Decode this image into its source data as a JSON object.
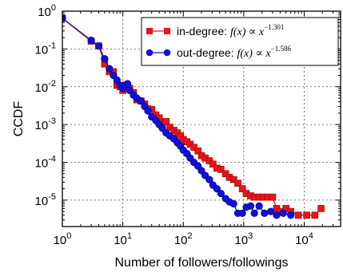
{
  "chart_data": {
    "type": "line",
    "title": "",
    "xlabel": "Number of followers/followings",
    "ylabel": "CCDF",
    "x_scale": "log",
    "y_scale": "log",
    "xlim": [
      1,
      40000
    ],
    "ylim": [
      2e-06,
      1
    ],
    "grid": true,
    "legend_position": "top-right",
    "x_ticks": [
      {
        "value": 1,
        "base": "10",
        "exp": "0"
      },
      {
        "value": 10,
        "base": "10",
        "exp": "1"
      },
      {
        "value": 100,
        "base": "10",
        "exp": "2"
      },
      {
        "value": 1000,
        "base": "10",
        "exp": "3"
      },
      {
        "value": 10000,
        "base": "10",
        "exp": "4"
      }
    ],
    "y_ticks": [
      {
        "value": 1,
        "base": "10",
        "exp": "0"
      },
      {
        "value": 0.1,
        "base": "10",
        "exp": "-1"
      },
      {
        "value": 0.01,
        "base": "10",
        "exp": "-2"
      },
      {
        "value": 0.001,
        "base": "10",
        "exp": "-3"
      },
      {
        "value": 0.0001,
        "base": "10",
        "exp": "-4"
      },
      {
        "value": 1e-05,
        "base": "10",
        "exp": "-5"
      }
    ],
    "series": [
      {
        "name": "in-degree",
        "legend_label": "in-degree:",
        "legend_formula": "f(x) ∝ x",
        "legend_exponent": "−1.301",
        "color": "#e8141b",
        "marker": "square",
        "x": [
          1,
          3,
          4,
          5,
          6,
          7,
          8,
          9,
          10,
          11,
          12,
          13,
          15,
          17,
          20,
          23,
          26,
          30,
          35,
          40,
          45,
          52,
          60,
          70,
          80,
          90,
          100,
          115,
          130,
          150,
          175,
          200,
          230,
          270,
          310,
          360,
          420,
          500,
          580,
          680,
          800,
          950,
          1100,
          1300,
          1500,
          1800,
          2100,
          2500,
          3000,
          3500,
          4000,
          5000,
          6000,
          8000,
          11000,
          15000,
          19000
        ],
        "y": [
          0.65,
          0.16,
          0.12,
          0.04,
          0.025,
          0.025,
          0.011,
          0.01,
          0.008,
          0.011,
          0.009,
          0.009,
          0.007,
          0.0045,
          0.0042,
          0.0035,
          0.0026,
          0.0025,
          0.0018,
          0.0015,
          0.0011,
          0.0012,
          0.00085,
          0.0007,
          0.0006,
          0.0005,
          0.0004,
          0.00035,
          0.0003,
          0.00025,
          0.0002,
          0.00015,
          0.00013,
          0.00011,
          9e-05,
          7e-05,
          6.5e-05,
          5e-05,
          4e-05,
          3.5e-05,
          2.8e-05,
          2e-05,
          1.5e-05,
          1.3e-05,
          1.2e-05,
          1.2e-05,
          1.2e-05,
          1.2e-05,
          1.2e-05,
          6e-06,
          5e-06,
          6e-06,
          5e-06,
          4e-06,
          4e-06,
          4e-06,
          6e-06
        ]
      },
      {
        "name": "out-degree",
        "legend_label": "out-degree:",
        "legend_formula": "f(x) ∝ x",
        "legend_exponent": "−1.586",
        "color": "#1010d8",
        "marker": "circle",
        "x": [
          1,
          3,
          4,
          5,
          6,
          7,
          8,
          9,
          10,
          11,
          12,
          13,
          15,
          17,
          20,
          23,
          26,
          30,
          35,
          40,
          45,
          52,
          60,
          70,
          80,
          90,
          100,
          115,
          130,
          150,
          175,
          200,
          230,
          270,
          310,
          360,
          420,
          500,
          580,
          680,
          800,
          950,
          1100,
          1300,
          1500,
          1800,
          2200,
          2800,
          3500,
          4500,
          6000
        ],
        "y": [
          0.65,
          0.17,
          0.12,
          0.055,
          0.03,
          0.02,
          0.015,
          0.011,
          0.009,
          0.011,
          0.012,
          0.008,
          0.006,
          0.005,
          0.0042,
          0.003,
          0.0023,
          0.0016,
          0.0013,
          0.001,
          0.0008,
          0.0006,
          0.0005,
          0.00042,
          0.00033,
          0.00027,
          0.00021,
          0.00017,
          0.00013,
          0.0001,
          8e-05,
          6e-05,
          4.5e-05,
          3.5e-05,
          2.5e-05,
          2e-05,
          1.5e-05,
          1.1e-05,
          9e-06,
          8e-06,
          4.5e-06,
          4.5e-06,
          6.5e-06,
          7e-06,
          4.5e-06,
          7e-06,
          4.5e-06,
          5e-06,
          4e-06,
          4.5e-06,
          4e-06
        ]
      }
    ]
  }
}
